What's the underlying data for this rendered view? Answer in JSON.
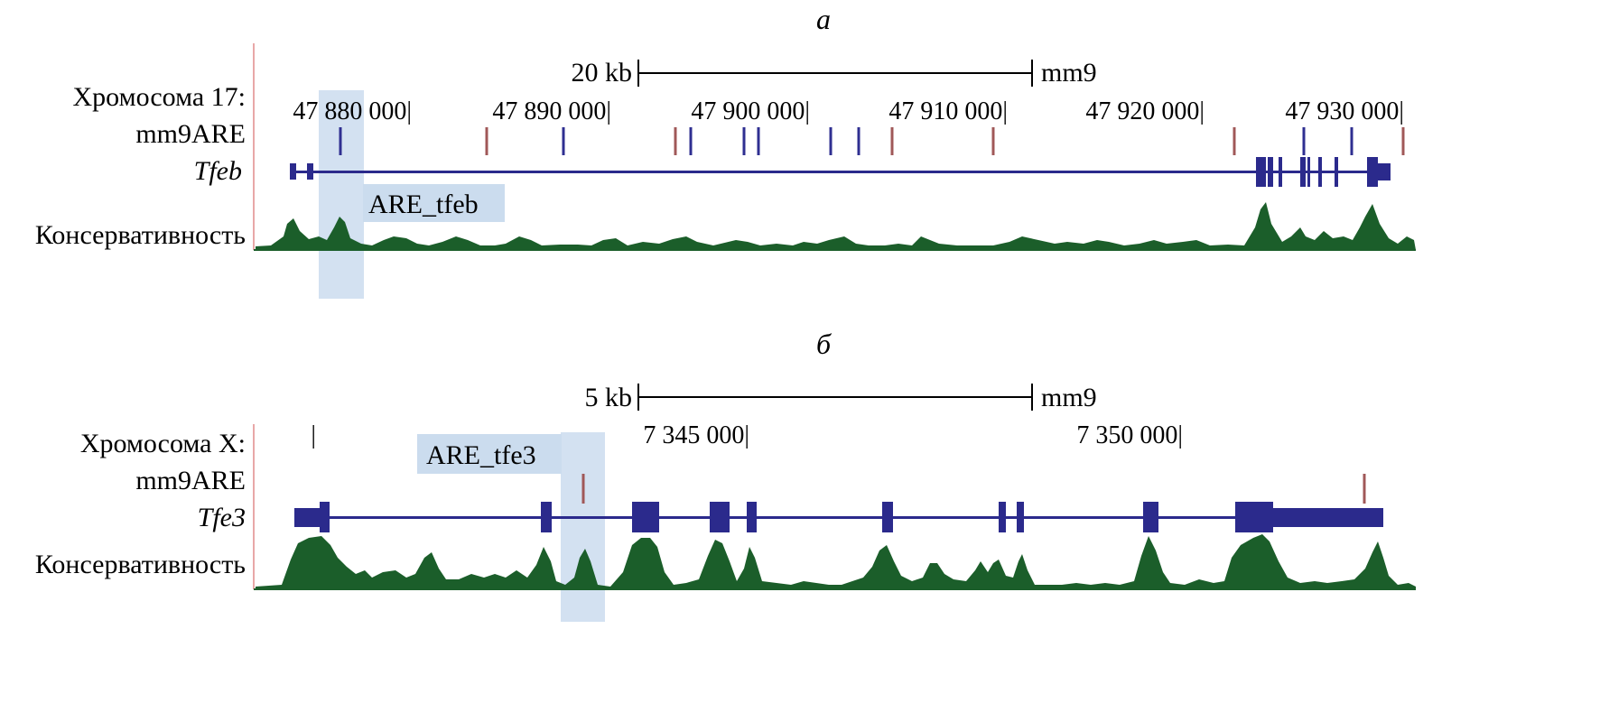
{
  "colors": {
    "ruler": "#000000",
    "gene": "#2b2a8c",
    "are_blue": "#2f2f91",
    "are_red": "#a05858",
    "conservation": "#1b5e2a",
    "highlight": "#cbdcee",
    "track_border": "#e8a8a8"
  },
  "panels": [
    {
      "letter": "а",
      "scale_label": "20 kb",
      "assembly": "mm9",
      "track_labels": {
        "chromosome": "Хромосома 17:",
        "are": "mm9ARE",
        "gene": "Tfeb",
        "conservation": "Консервативность"
      },
      "ticks": [
        "47 880 000|",
        "47 890 000|",
        "47 900 000|",
        "47 910 000|",
        "47 920 000|",
        "47 930 000|"
      ],
      "highlight_label": "ARE_tfeb"
    },
    {
      "letter": "б",
      "scale_label": "5 kb",
      "assembly": "mm9",
      "track_labels": {
        "chromosome": "Хромосома X:",
        "are": "mm9ARE",
        "gene": "Tfe3",
        "conservation": "Консервативность"
      },
      "ticks": [
        "|",
        "7 345 000|",
        "7 350 000|"
      ],
      "highlight_label": "ARE_tfe3"
    }
  ]
}
